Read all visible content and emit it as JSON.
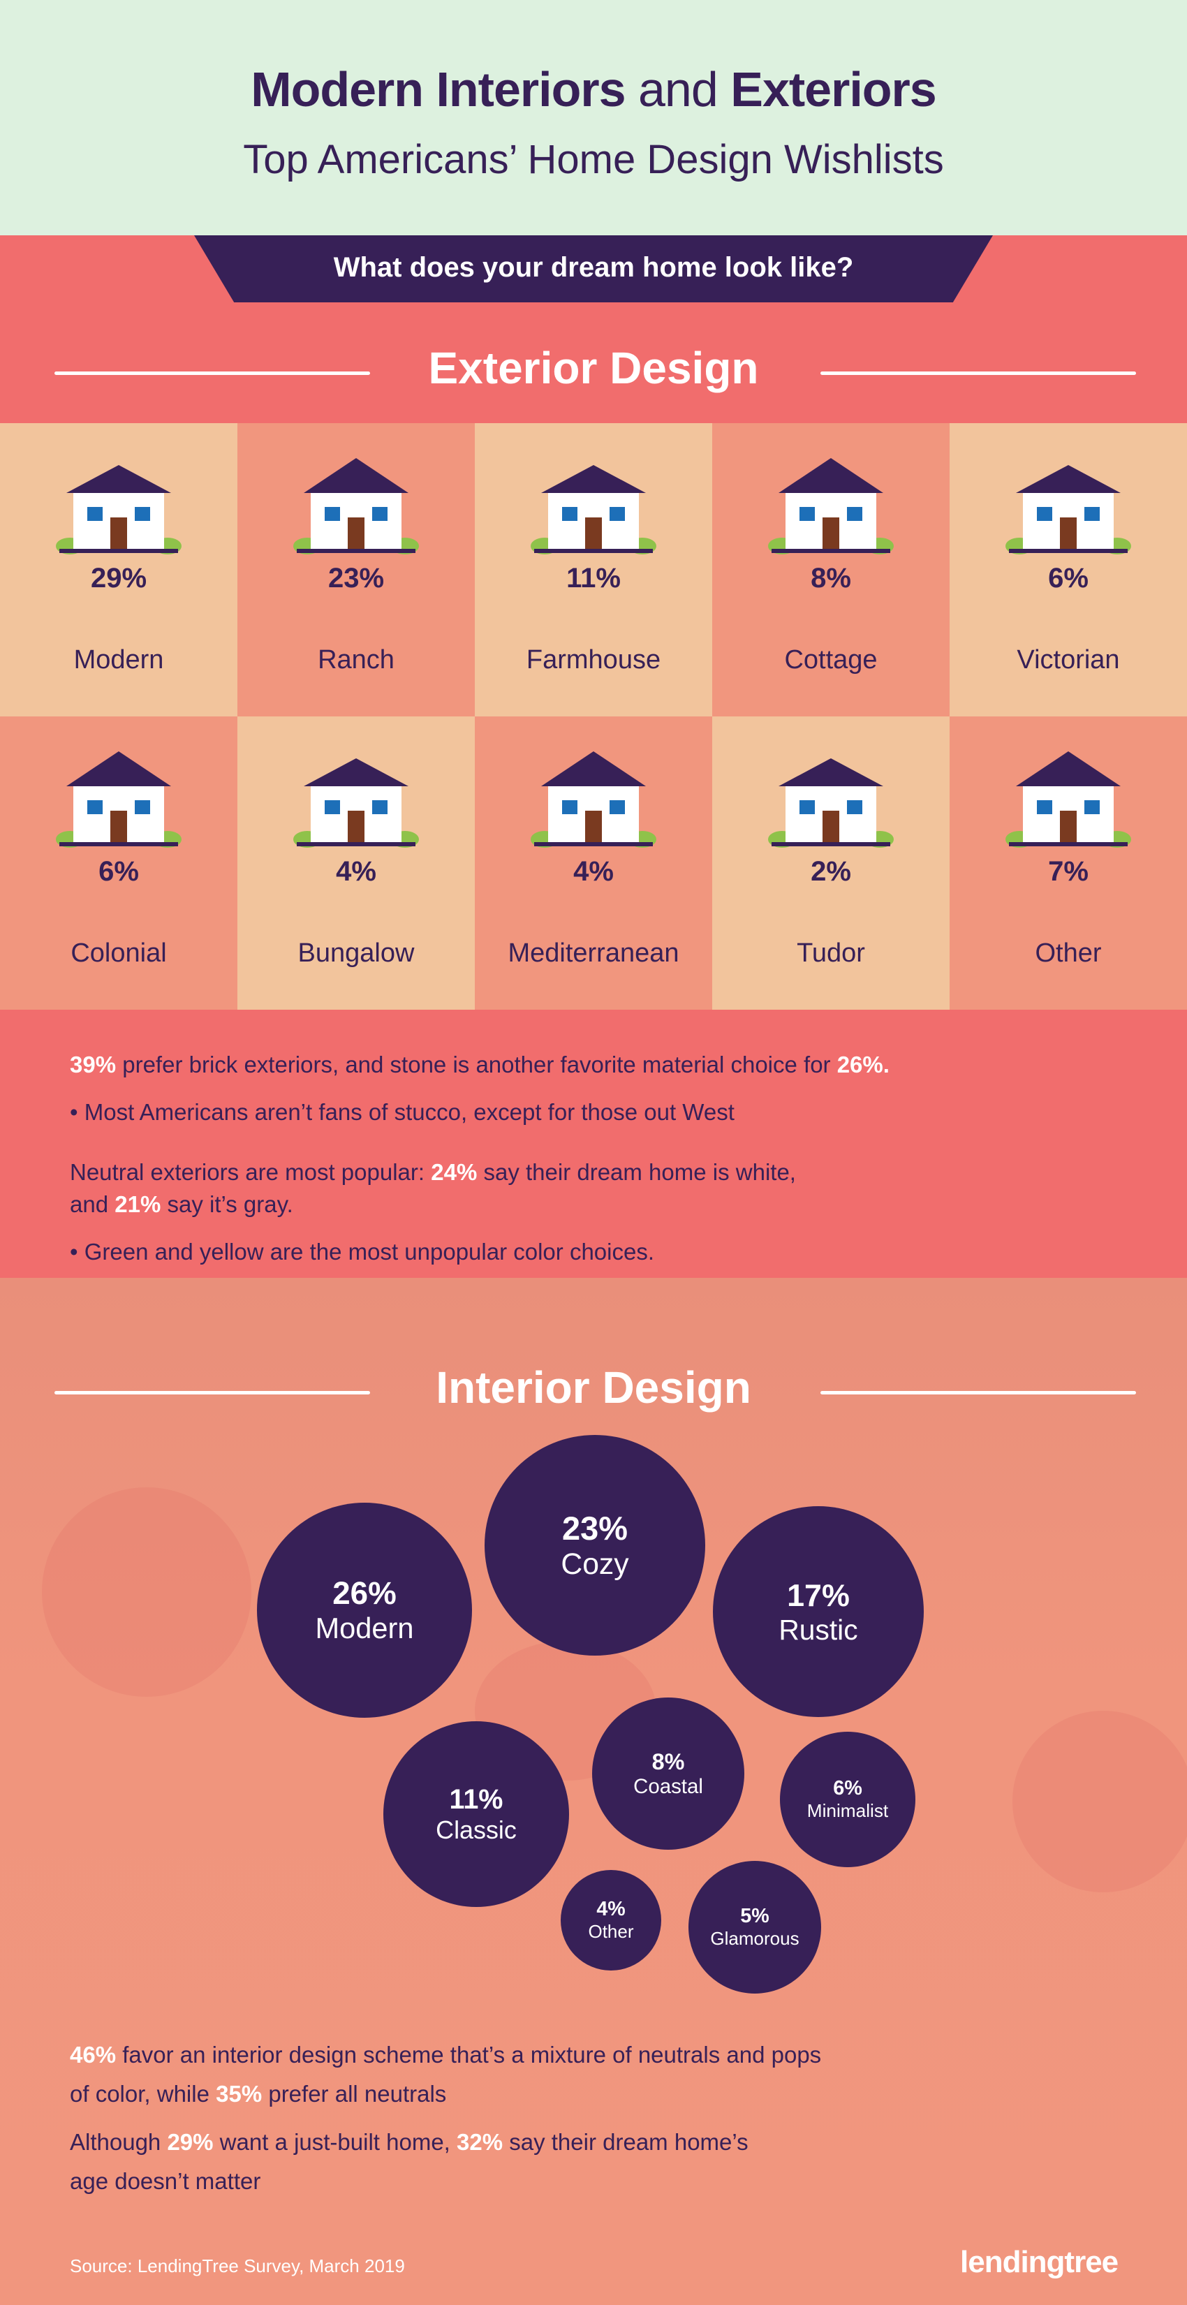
{
  "header": {
    "title_bold1": "Modern Interiors",
    "title_light": "and",
    "title_bold2": "Exteriors",
    "subtitle": "Top Americans’ Home Design Wishlists"
  },
  "banner": "What does your dream home look like?",
  "exterior": {
    "title": "Exterior Design",
    "styles": [
      {
        "pct": "29%",
        "name": "Modern"
      },
      {
        "pct": "23%",
        "name": "Ranch"
      },
      {
        "pct": "11%",
        "name": "Farmhouse"
      },
      {
        "pct": "8%",
        "name": "Cottage"
      },
      {
        "pct": "6%",
        "name": "Victorian"
      },
      {
        "pct": "6%",
        "name": "Colonial"
      },
      {
        "pct": "4%",
        "name": "Bungalow"
      },
      {
        "pct": "4%",
        "name": "Mediterranean"
      },
      {
        "pct": "2%",
        "name": "Tudor"
      },
      {
        "pct": "7%",
        "name": "Other"
      }
    ]
  },
  "facts": {
    "f1": {
      "a": "39%",
      "b": " prefer brick exteriors, and stone is another favorite material choice for ",
      "c": "26%."
    },
    "f2": "•  Most Americans aren’t fans of stucco, except for those out West",
    "f3": {
      "a": "Neutral exteriors are most popular: ",
      "b": "24%",
      "c": " say their dream home is white,",
      "d": "and ",
      "e": "21%",
      "f": " say it’s gray."
    },
    "f4": "•  Green and yellow are the most unpopular color choices."
  },
  "interior": {
    "title": "Interior Design",
    "styles": [
      {
        "pct": "26%",
        "name": "Modern"
      },
      {
        "pct": "23%",
        "name": "Cozy"
      },
      {
        "pct": "17%",
        "name": "Rustic"
      },
      {
        "pct": "11%",
        "name": "Classic"
      },
      {
        "pct": "8%",
        "name": "Coastal"
      },
      {
        "pct": "6%",
        "name": "Minimalist"
      },
      {
        "pct": "4%",
        "name": "Other"
      },
      {
        "pct": "5%",
        "name": "Glamorous"
      }
    ]
  },
  "bottom": {
    "b1": {
      "a": "46%",
      "b": " favor an interior design scheme that’s a mixture of neutrals and pops",
      "c": "of color, while ",
      "d": "35%",
      "e": " prefer all neutrals"
    },
    "b2": {
      "a": "Although ",
      "b": "29%",
      "c": " want a just-built home, ",
      "d": "32%",
      "e": " say their dream home’s",
      "f": "age doesn’t matter"
    }
  },
  "source": "Source: LendingTree Survey, March 2019",
  "logo": "lendingtree",
  "colors": {
    "purple": "#372057",
    "coral": "#f16d6d",
    "peach": "#f2c49c",
    "salmon": "#f1967e",
    "mint": "#ddf1df"
  }
}
